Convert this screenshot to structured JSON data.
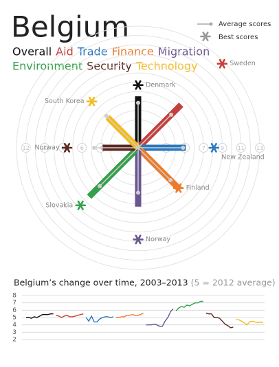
{
  "chart_data": [
    {
      "type": "radial",
      "title": "Belgium",
      "categories": [
        "Overall",
        "Aid",
        "Trade",
        "Finance",
        "Migration",
        "Environment",
        "Security",
        "Technology"
      ],
      "colors": [
        "#111111",
        "#c4403d",
        "#2a78bf",
        "#ec7b2c",
        "#6a5690",
        "#34a04a",
        "#5a2820",
        "#f4bb1e"
      ],
      "values": [
        5.5,
        6.5,
        5.1,
        6.3,
        6.3,
        7.4,
        3.8,
        4.6
      ],
      "series": [
        {
          "name": "Average scores",
          "color": "#aaaaaa",
          "values": [
            4.8,
            5.0,
            4.8,
            4.9,
            4.8,
            5.8,
            4.7,
            4.8
          ]
        },
        {
          "name": "Best scores",
          "color": "#999999",
          "values": [
            6.7,
            12.7,
            8.1,
            6.1,
            9.8,
            8.7,
            7.6,
            7.0
          ],
          "countries": [
            "Denmark",
            "Sweden",
            "New Zealand",
            "Finland",
            "Norway",
            "Slovakia",
            "Norway",
            "South Korea"
          ]
        }
      ],
      "rlim": [
        0,
        13
      ],
      "rticks": [
        3,
        4,
        5,
        6,
        7,
        8,
        9,
        10,
        11,
        12,
        13
      ]
    },
    {
      "type": "line",
      "title": "Belgium’s change over time, 2003–2013",
      "subtitle": "(5 = 2012 average)",
      "series": [
        {
          "color": "#111111",
          "values": [
            5.0,
            5.0,
            4.9,
            5.1,
            5.0,
            5.2,
            5.4,
            5.4,
            5.4,
            5.5,
            5.5
          ]
        },
        {
          "color": "#c4403d",
          "values": [
            5.3,
            5.2,
            5.0,
            5.2,
            5.3,
            5.1,
            5.1,
            5.2,
            5.3,
            5.4,
            5.5
          ]
        },
        {
          "color": "#2a78bf",
          "values": [
            5.0,
            4.5,
            5.2,
            4.4,
            4.4,
            4.8,
            5.0,
            5.1,
            5.1,
            5.0,
            5.1
          ]
        },
        {
          "color": "#ec7b2c",
          "values": [
            5.0,
            5.0,
            5.1,
            5.1,
            5.3,
            5.3,
            5.4,
            5.3,
            5.3,
            5.4,
            5.6
          ]
        },
        {
          "color": "#6a5690",
          "values": [
            4.0,
            4.0,
            4.0,
            4.1,
            4.0,
            3.8,
            3.8,
            4.5,
            5.0,
            5.8,
            6.2
          ]
        },
        {
          "color": "#34a04a",
          "values": [
            5.9,
            6.3,
            6.5,
            6.4,
            6.7,
            6.6,
            6.8,
            7.0,
            7.0,
            7.2,
            7.2
          ]
        },
        {
          "color": "#5a2820",
          "values": [
            5.6,
            5.5,
            5.5,
            5.0,
            5.0,
            4.9,
            4.5,
            4.1,
            3.9,
            3.6,
            3.7
          ]
        },
        {
          "color": "#f4bb1e",
          "values": [
            4.7,
            4.7,
            4.5,
            4.3,
            4.0,
            4.4,
            4.5,
            4.4,
            4.3,
            4.4,
            4.3
          ]
        }
      ],
      "ylim": [
        2,
        8
      ],
      "yticks": [
        2,
        3,
        4,
        5,
        6,
        7,
        8
      ],
      "grid": true
    }
  ]
}
